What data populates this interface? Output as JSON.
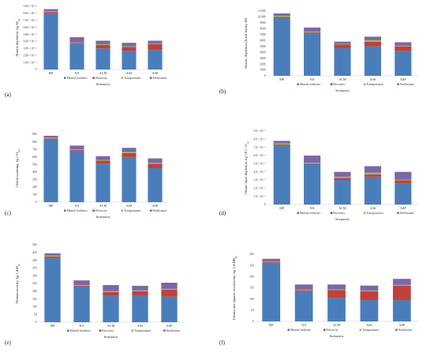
{
  "legend": {
    "items": [
      {
        "key": "mineral",
        "label": "Mineral fertilizers",
        "color": "#4a7ebb"
      },
      {
        "key": "electricity",
        "label": "Electricity",
        "color": "#c0403c"
      },
      {
        "key": "transportation",
        "label": "Transportation",
        "color": "#9bbb59"
      },
      {
        "key": "fertilization",
        "label": "Fertilization",
        "color": "#7e66a6"
      }
    ]
  },
  "chart_data": [
    {
      "panel": "(a)",
      "type": "bar",
      "stacked": true,
      "ylabel": "Abiotic depletion, kg Sb",
      "ylabel_sub": "eq",
      "xlabel": "Scenarios",
      "categories": [
        "MF",
        "NA",
        "ACM",
        "ASS",
        "ASP"
      ],
      "ylim": [
        0,
        0.0009
      ],
      "ytick_labels": [
        "0",
        "1.00 × 10⁻⁴",
        "2.00 × 10⁻⁴",
        "3.00 × 10⁻⁴",
        "4.00 × 10⁻⁴",
        "5.00 × 10⁻⁴",
        "6.00 × 10⁻⁴",
        "7.00 × 10⁻⁴",
        "8.00 × 10⁻⁴",
        "9.00 × 10⁻⁴"
      ],
      "series": [
        {
          "name": "Mineral fertilizers",
          "values": [
            0.0008,
            0.00037,
            0.0003,
            0.00027,
            0.00028
          ]
        },
        {
          "name": "Electricity",
          "values": [
            2e-05,
            1e-05,
            5e-05,
            5e-05,
            8e-05
          ]
        },
        {
          "name": "Transportation",
          "values": [
            1e-05,
            5e-06,
            1e-05,
            1e-05,
            1e-05
          ]
        },
        {
          "name": "Fertilization",
          "values": [
            3e-05,
            7.5e-05,
            5e-05,
            5e-05,
            4e-05
          ]
        }
      ]
    },
    {
      "panel": "(b)",
      "type": "bar",
      "stacked": true,
      "ylabel": "Abiotic depletion (fossil fuels), MJ",
      "ylabel_sub": "",
      "xlabel": "Scenarios",
      "categories": [
        "MF",
        "NA",
        "ACM",
        "ASS",
        "ASP"
      ],
      "ylim": [
        0,
        11000
      ],
      "ytick_labels": [
        "0",
        "1000",
        "2000",
        "3000",
        "4000",
        "5000",
        "6000",
        "7000",
        "8000",
        "9000",
        "10,000",
        "11,000"
      ],
      "series": [
        {
          "name": "Mineral fertilizers",
          "values": [
            9800,
            7300,
            4700,
            5000,
            4200
          ]
        },
        {
          "name": "Electricity",
          "values": [
            200,
            100,
            600,
            800,
            800
          ]
        },
        {
          "name": "Transportation",
          "values": [
            200,
            100,
            100,
            250,
            100
          ]
        },
        {
          "name": "Fertilization",
          "values": [
            400,
            700,
            400,
            600,
            600
          ]
        }
      ]
    },
    {
      "panel": "(c)",
      "type": "bar",
      "stacked": true,
      "ylabel": "Global warming, kg CO",
      "ylabel_sub": "2eq",
      "xlabel": "Scenarios",
      "categories": [
        "MF",
        "NA",
        "ACM",
        "ASS",
        "ASP"
      ],
      "ylim": [
        0,
        900
      ],
      "ytick_labels": [
        "0",
        "100",
        "200",
        "300",
        "400",
        "500",
        "600",
        "700",
        "800",
        "900"
      ],
      "series": [
        {
          "name": "Mineral fertilizers",
          "values": [
            830,
            680,
            510,
            600,
            450
          ]
        },
        {
          "name": "Electricity",
          "values": [
            15,
            10,
            40,
            50,
            60
          ]
        },
        {
          "name": "Transportation",
          "values": [
            10,
            10,
            10,
            15,
            10
          ]
        },
        {
          "name": "Fertilization",
          "values": [
            25,
            50,
            50,
            55,
            60
          ]
        }
      ]
    },
    {
      "panel": "(d)",
      "type": "bar",
      "stacked": true,
      "ylabel": "Ozone layer depletion, kg CFC-11",
      "ylabel_sub": "eq",
      "xlabel": "Scenarios",
      "categories": [
        "MF",
        "NA",
        "ACM",
        "ASS",
        "ASP"
      ],
      "ylim": [
        0,
        9e-05
      ],
      "ytick_labels": [
        "0",
        "1.0 × 10⁻⁵",
        "2.0 × 10⁻⁵",
        "3.0 × 10⁻⁵",
        "4.0 × 10⁻⁵",
        "5.0 × 10⁻⁵",
        "6.0 × 10⁻⁵",
        "7.0 × 10⁻⁵",
        "8.0 × 10⁻⁵",
        "9.0 × 10⁻⁵"
      ],
      "series": [
        {
          "name": "Mineral fertilizers",
          "values": [
            7.2e-05,
            5e-05,
            3e-05,
            3.4e-05,
            2.6e-05
          ]
        },
        {
          "name": "Electricity",
          "values": [
            1.5e-06,
            5e-07,
            2.5e-06,
            3e-06,
            3.5e-06
          ]
        },
        {
          "name": "Transportation",
          "values": [
            1.5e-06,
            5e-07,
            1.5e-06,
            2e-06,
            1e-06
          ]
        },
        {
          "name": "Fertilization",
          "values": [
            3e-06,
            9e-06,
            6e-06,
            8e-06,
            9.5e-06
          ]
        }
      ]
    },
    {
      "panel": "(e)",
      "type": "bar",
      "stacked": true,
      "ylabel": "Human toxicity, kg 1,4-D",
      "ylabel_sub": "eq",
      "xlabel": "Scenarios",
      "categories": [
        "MF",
        "NA",
        "ACM",
        "ASS",
        "ASP"
      ],
      "ylim": [
        0,
        500
      ],
      "ytick_labels": [
        "0",
        "50",
        "100",
        "150",
        "200",
        "250",
        "300",
        "350",
        "400",
        "450",
        "500"
      ],
      "series": [
        {
          "name": "Mineral fertilizers",
          "values": [
            415,
            230,
            170,
            170,
            165
          ]
        },
        {
          "name": "Electricity",
          "values": [
            10,
            5,
            25,
            30,
            45
          ]
        },
        {
          "name": "Transportation",
          "values": [
            5,
            5,
            5,
            5,
            5
          ]
        },
        {
          "name": "Fertilization",
          "values": [
            15,
            30,
            40,
            30,
            40
          ]
        }
      ]
    },
    {
      "panel": "(f)",
      "type": "bar",
      "stacked": true,
      "ylabel": "Freshwater aquatic ecotoxicity, kg 1,4-DB",
      "ylabel_sub": "eq",
      "xlabel": "Scenarios",
      "categories": [
        "MF",
        "NA",
        "ACM",
        "ASS",
        "ASP"
      ],
      "ylim": [
        0,
        300
      ],
      "ytick_labels": [
        "0",
        "50",
        "100",
        "150",
        "200",
        "250",
        "300"
      ],
      "series": [
        {
          "name": "Mineral fertilizers",
          "values": [
            260,
            135,
            105,
            95,
            95
          ]
        },
        {
          "name": "Electricity",
          "values": [
            5,
            5,
            35,
            40,
            65
          ]
        },
        {
          "name": "Transportation",
          "values": [
            3,
            3,
            3,
            3,
            3
          ]
        },
        {
          "name": "Fertilization",
          "values": [
            12,
            22,
            22,
            22,
            27
          ]
        }
      ]
    }
  ]
}
